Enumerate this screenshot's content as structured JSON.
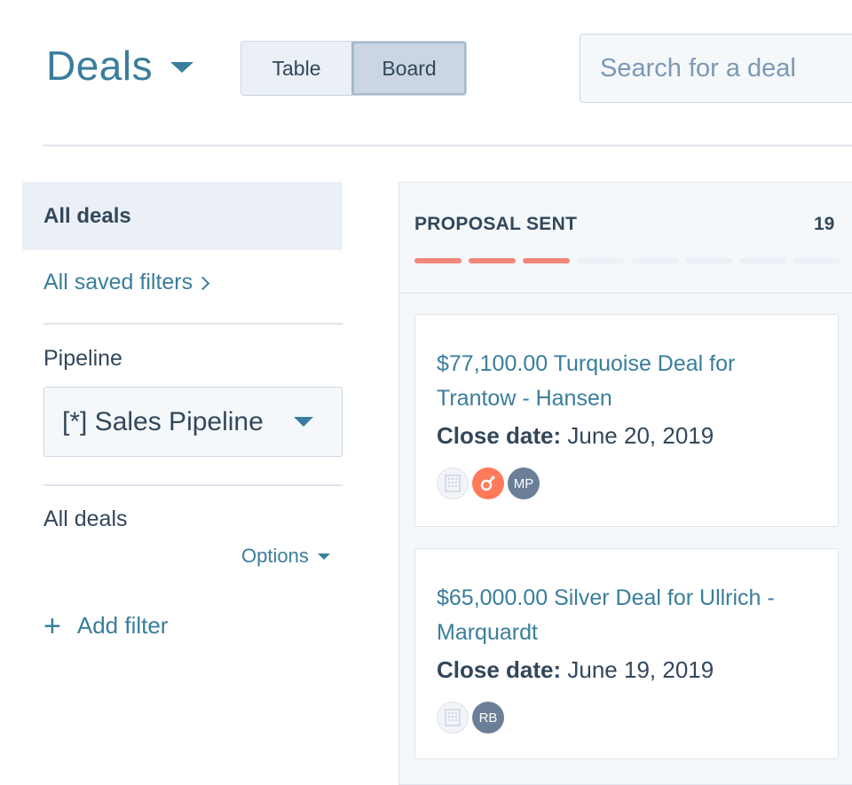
{
  "header": {
    "title": "Deals",
    "view_toggle": {
      "table_label": "Table",
      "board_label": "Board",
      "active": "Board"
    },
    "search": {
      "placeholder": "Search for a deal",
      "value": ""
    }
  },
  "sidebar": {
    "active_view": "All deals",
    "saved_filters_link": "All saved filters",
    "pipeline_label": "Pipeline",
    "pipeline_value": "[*] Sales Pipeline",
    "filters_heading": "All deals",
    "options_label": "Options",
    "add_filter_label": "Add filter"
  },
  "board": {
    "column": {
      "title": "PROPOSAL SENT",
      "count": "19",
      "progress": {
        "filled": 3,
        "total": 8,
        "color": "#f2877b"
      }
    },
    "cards": [
      {
        "name": "$77,100.00 Turquoise Deal for Trantow - Hansen",
        "close_label": "Close date:",
        "close_date": "June 20, 2019",
        "avatars": [
          {
            "icon": "company-icon",
            "initials": ""
          },
          {
            "icon": "hubspot-icon",
            "initials": ""
          },
          {
            "icon": "user-avatar",
            "initials": "MP"
          }
        ]
      },
      {
        "name": "$65,000.00 Silver Deal for Ullrich - Marquardt",
        "close_label": "Close date:",
        "close_date": "June 19, 2019",
        "avatars": [
          {
            "icon": "company-icon",
            "initials": ""
          },
          {
            "icon": "user-avatar",
            "initials": "RB"
          }
        ]
      }
    ]
  },
  "colors": {
    "accent": "#3a7e9c",
    "text": "#33475b",
    "progress_on": "#f2877b",
    "hubspot": "#ff7a59"
  }
}
